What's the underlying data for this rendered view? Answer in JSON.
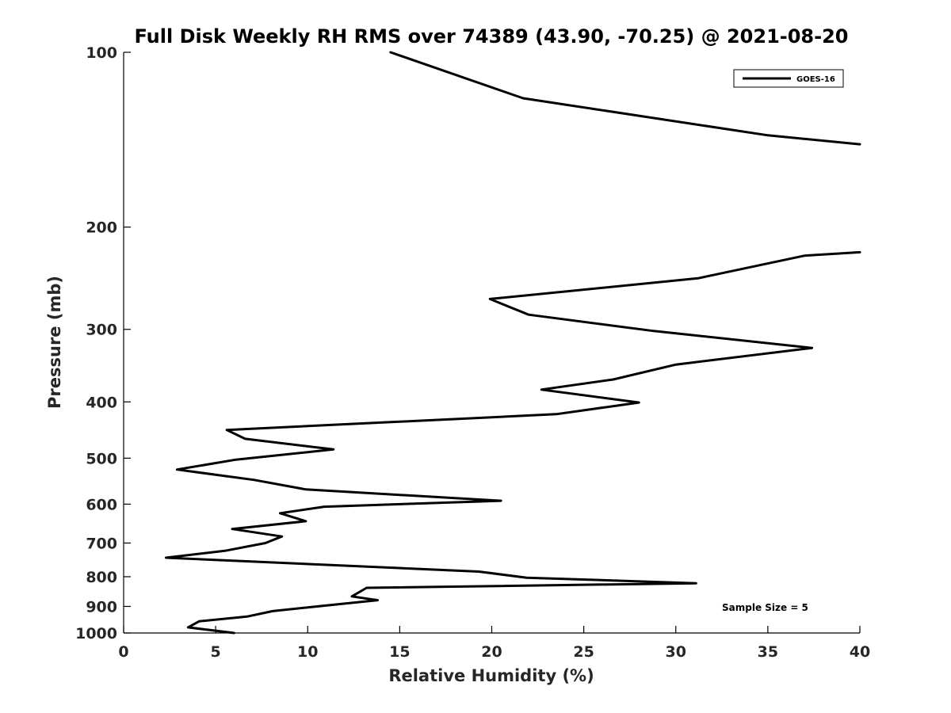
{
  "chart_data": {
    "type": "line",
    "title": "Full Disk Weekly RH RMS over 74389 (43.90, -70.25) @ 2021-08-20",
    "xlabel": "Relative Humidity (%)",
    "ylabel": "Pressure (mb)",
    "xlim": [
      0,
      40
    ],
    "ylim": [
      1000,
      100
    ],
    "yscale": "log",
    "y_reversed": true,
    "grid": false,
    "x_ticks": [
      0,
      5,
      10,
      15,
      20,
      25,
      30,
      35,
      40
    ],
    "x_tick_labels": [
      "0",
      "5",
      "10",
      "15",
      "20",
      "25",
      "30",
      "35",
      "40"
    ],
    "y_ticks": [
      100,
      200,
      300,
      400,
      500,
      600,
      700,
      800,
      900,
      1000
    ],
    "y_tick_labels": [
      "100",
      "200",
      "300",
      "400",
      "500",
      "600",
      "700",
      "800",
      "900",
      "1000"
    ],
    "legend": {
      "placement": "top-right",
      "entries": [
        "GOES-16"
      ]
    },
    "annotation": "Sample Size = 5",
    "line_color": "#000000",
    "series": [
      {
        "name": "GOES-16",
        "segments": [
          {
            "x": [
              14.5,
              21.7,
              35.0,
              40.0
            ],
            "y": [
              100,
              120,
              139,
              144
            ]
          },
          {
            "x": [
              40.0,
              37.0,
              31.2,
              19.9,
              22.0,
              28.8,
              37.4,
              30.0,
              26.6,
              22.7,
              28.0,
              23.5,
              5.6,
              6.6,
              11.4,
              6.1,
              2.9,
              7.1,
              9.9,
              20.5,
              10.9,
              8.5,
              9.9,
              5.9,
              8.6,
              7.7,
              5.5,
              2.3,
              19.3,
              21.9,
              31.1,
              13.2,
              12.4,
              13.8,
              10.2,
              8.1,
              6.7,
              4.1,
              3.5,
              6.0
            ],
            "y": [
              221,
              224,
              245,
              266,
              283,
              302,
              323,
              345,
              366,
              381,
              401,
              420,
              447,
              463,
              483,
              503,
              523,
              545,
              566,
              592,
              606,
              622,
              642,
              662,
              682,
              700,
              722,
              742,
              784,
              803,
              821,
              836,
              865,
              878,
              902,
              917,
              937,
              955,
              978,
              1000
            ]
          }
        ]
      }
    ]
  }
}
